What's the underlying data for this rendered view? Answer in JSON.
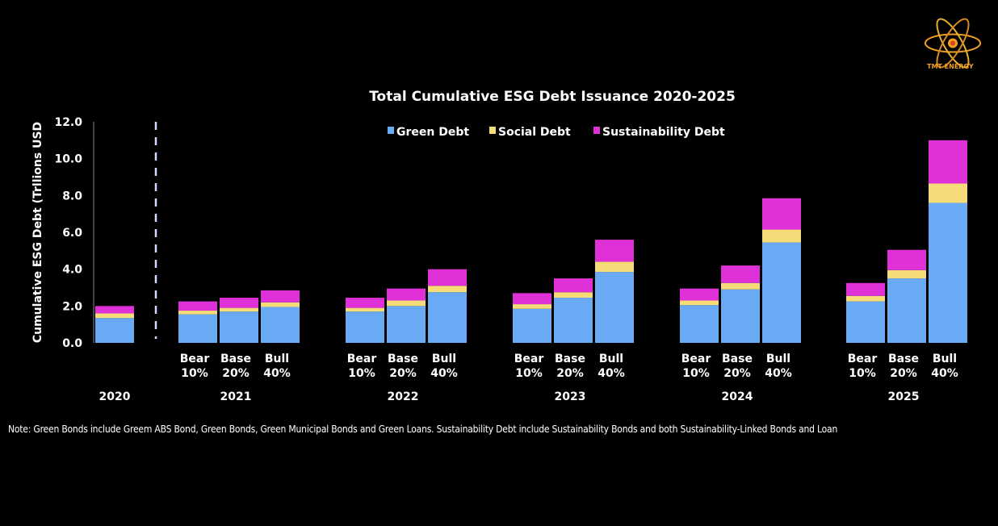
{
  "logo": {
    "text": "TMT ENERGY"
  },
  "note": "Note: Green Bonds include Greem ABS Bond, Green Bonds, Green Municipal Bonds and Green Loans. Sustainability Debt include Sustainability Bonds and both Sustainability-Linked Bonds and Loan",
  "chart_data": {
    "type": "bar",
    "stacked": true,
    "title": "Total Cumulative ESG Debt Issuance 2020-2025",
    "ylabel": "Cumulative ESG Debt (Trllions USD",
    "ylim": [
      0,
      12
    ],
    "yticks": [
      "0.0",
      "2.0",
      "4.0",
      "6.0",
      "8.0",
      "10.0",
      "12.0"
    ],
    "legend_position": "top",
    "colors": {
      "green": "#6aaaf5",
      "social": "#f5dc78",
      "sustainability": "#e030d8"
    },
    "series": [
      {
        "name": "Green Debt",
        "key": "green"
      },
      {
        "name": "Social Debt",
        "key": "social"
      },
      {
        "name": "Sustainability Debt",
        "key": "sustainability"
      }
    ],
    "groups": [
      {
        "year": "2020",
        "bars": [
          {
            "scenario": "",
            "pct": "",
            "values": [
              1.35,
              0.25,
              0.4
            ]
          }
        ]
      },
      {
        "year": "2021",
        "bars": [
          {
            "scenario": "Bear",
            "pct": "10%",
            "values": [
              1.55,
              0.2,
              0.5
            ]
          },
          {
            "scenario": "Base",
            "pct": "20%",
            "values": [
              1.7,
              0.2,
              0.55
            ]
          },
          {
            "scenario": "Bull",
            "pct": "40%",
            "values": [
              1.95,
              0.25,
              0.65
            ]
          }
        ]
      },
      {
        "year": "2022",
        "bars": [
          {
            "scenario": "Bear",
            "pct": "10%",
            "values": [
              1.7,
              0.2,
              0.55
            ]
          },
          {
            "scenario": "Base",
            "pct": "20%",
            "values": [
              2.0,
              0.3,
              0.65
            ]
          },
          {
            "scenario": "Bull",
            "pct": "40%",
            "values": [
              2.75,
              0.35,
              0.9
            ]
          }
        ]
      },
      {
        "year": "2023",
        "bars": [
          {
            "scenario": "Bear",
            "pct": "10%",
            "values": [
              1.85,
              0.25,
              0.6
            ]
          },
          {
            "scenario": "Base",
            "pct": "20%",
            "values": [
              2.45,
              0.3,
              0.75
            ]
          },
          {
            "scenario": "Bull",
            "pct": "40%",
            "values": [
              3.85,
              0.55,
              1.2
            ]
          }
        ]
      },
      {
        "year": "2024",
        "bars": [
          {
            "scenario": "Bear",
            "pct": "10%",
            "values": [
              2.05,
              0.25,
              0.65
            ]
          },
          {
            "scenario": "Base",
            "pct": "20%",
            "values": [
              2.9,
              0.35,
              0.95
            ]
          },
          {
            "scenario": "Bull",
            "pct": "40%",
            "values": [
              5.45,
              0.7,
              1.7
            ]
          }
        ]
      },
      {
        "year": "2025",
        "bars": [
          {
            "scenario": "Bear",
            "pct": "10%",
            "values": [
              2.25,
              0.3,
              0.7
            ]
          },
          {
            "scenario": "Base",
            "pct": "20%",
            "values": [
              3.5,
              0.45,
              1.1
            ]
          },
          {
            "scenario": "Bull",
            "pct": "40%",
            "values": [
              7.6,
              1.05,
              2.35
            ]
          }
        ]
      }
    ]
  }
}
